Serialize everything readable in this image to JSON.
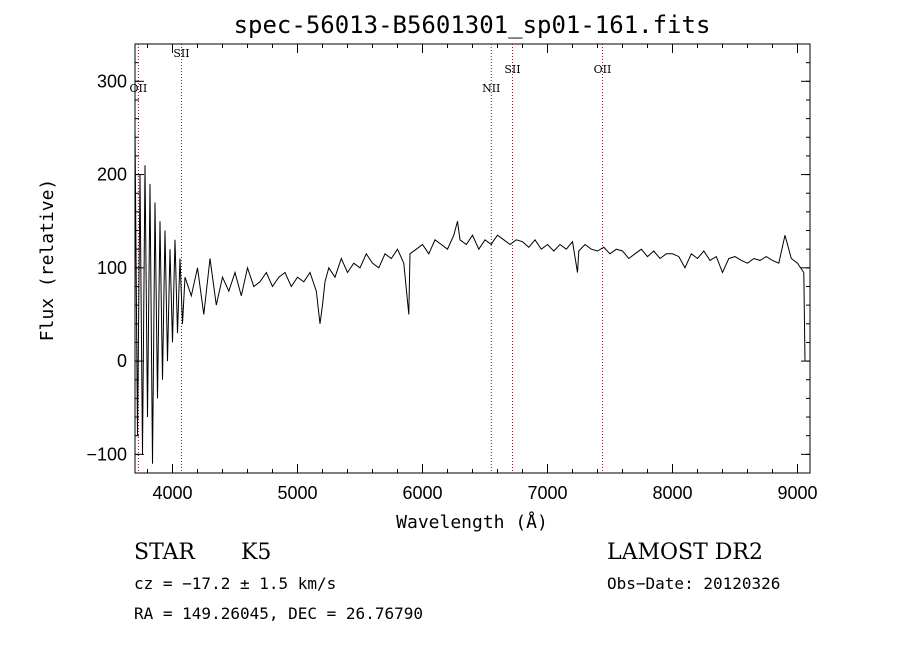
{
  "chart_data": {
    "type": "line",
    "title": "spec-56013-B5601301_sp01-161.fits",
    "xlabel": "Wavelength (Å)",
    "ylabel": "Flux (relative)",
    "xlim": [
      3700,
      9100
    ],
    "ylim": [
      -120,
      340
    ],
    "x_ticks": [
      4000,
      5000,
      6000,
      7000,
      8000,
      9000
    ],
    "y_ticks": [
      -100,
      0,
      100,
      200,
      300
    ],
    "grid": false,
    "series": [
      {
        "x": [
          3700,
          3720,
          3740,
          3760,
          3780,
          3800,
          3820,
          3840,
          3860,
          3880,
          3900,
          3920,
          3940,
          3960,
          3980,
          4000,
          4020,
          4040,
          4060,
          4080,
          4100,
          4150,
          4200,
          4250,
          4300,
          4350,
          4400,
          4450,
          4500,
          4550,
          4600,
          4650,
          4700,
          4750,
          4800,
          4850,
          4900,
          4950,
          5000,
          5050,
          5100,
          5150,
          5180,
          5200,
          5220,
          5250,
          5300,
          5350,
          5400,
          5450,
          5500,
          5550,
          5600,
          5650,
          5700,
          5750,
          5800,
          5850,
          5890,
          5900,
          5950,
          6000,
          6050,
          6100,
          6150,
          6200,
          6250,
          6280,
          6300,
          6350,
          6400,
          6450,
          6500,
          6550,
          6563,
          6600,
          6650,
          6700,
          6750,
          6800,
          6850,
          6900,
          6950,
          7000,
          7050,
          7100,
          7150,
          7200,
          7240,
          7250,
          7300,
          7350,
          7400,
          7450,
          7500,
          7550,
          7600,
          7650,
          7700,
          7750,
          7800,
          7850,
          7900,
          7950,
          8000,
          8050,
          8100,
          8150,
          8200,
          8250,
          8300,
          8350,
          8400,
          8450,
          8500,
          8550,
          8600,
          8650,
          8700,
          8750,
          8800,
          8850,
          8900,
          8950,
          9000,
          9050,
          9060
        ],
        "y": [
          250,
          -80,
          200,
          -100,
          210,
          -60,
          190,
          -110,
          170,
          -40,
          150,
          -20,
          140,
          0,
          120,
          20,
          130,
          30,
          110,
          40,
          90,
          70,
          100,
          50,
          110,
          60,
          90,
          75,
          95,
          70,
          100,
          80,
          85,
          95,
          80,
          90,
          95,
          80,
          90,
          85,
          95,
          75,
          40,
          60,
          85,
          100,
          90,
          110,
          95,
          105,
          100,
          115,
          105,
          100,
          115,
          110,
          120,
          105,
          50,
          115,
          120,
          125,
          115,
          130,
          125,
          120,
          135,
          150,
          130,
          125,
          135,
          120,
          130,
          125,
          128,
          135,
          130,
          125,
          130,
          128,
          122,
          130,
          120,
          125,
          118,
          125,
          120,
          128,
          95,
          118,
          125,
          120,
          118,
          122,
          115,
          120,
          118,
          110,
          115,
          120,
          112,
          118,
          110,
          115,
          115,
          112,
          100,
          115,
          110,
          118,
          108,
          112,
          95,
          110,
          112,
          108,
          105,
          110,
          108,
          112,
          108,
          105,
          135,
          110,
          105,
          95,
          0
        ]
      }
    ],
    "lines": [
      {
        "label": "OII",
        "x": 3727
      },
      {
        "label": "SII",
        "x": 4072
      },
      {
        "label": "NII",
        "x": 6550
      },
      {
        "label": "SII",
        "x": 6720
      },
      {
        "label": "OII",
        "x": 7440
      }
    ]
  },
  "info": {
    "object_class": "STAR",
    "subclass": "K5",
    "survey": "LAMOST DR2",
    "cz": "cz = −17.2 ± 1.5 km/s",
    "obs_date": "Obs−Date: 20120326",
    "coords": "RA = 149.26045, DEC =  26.76790"
  },
  "colors": {
    "spectrum": "#000000",
    "line_markers": "#8b1a1a",
    "axes": "#000000"
  }
}
